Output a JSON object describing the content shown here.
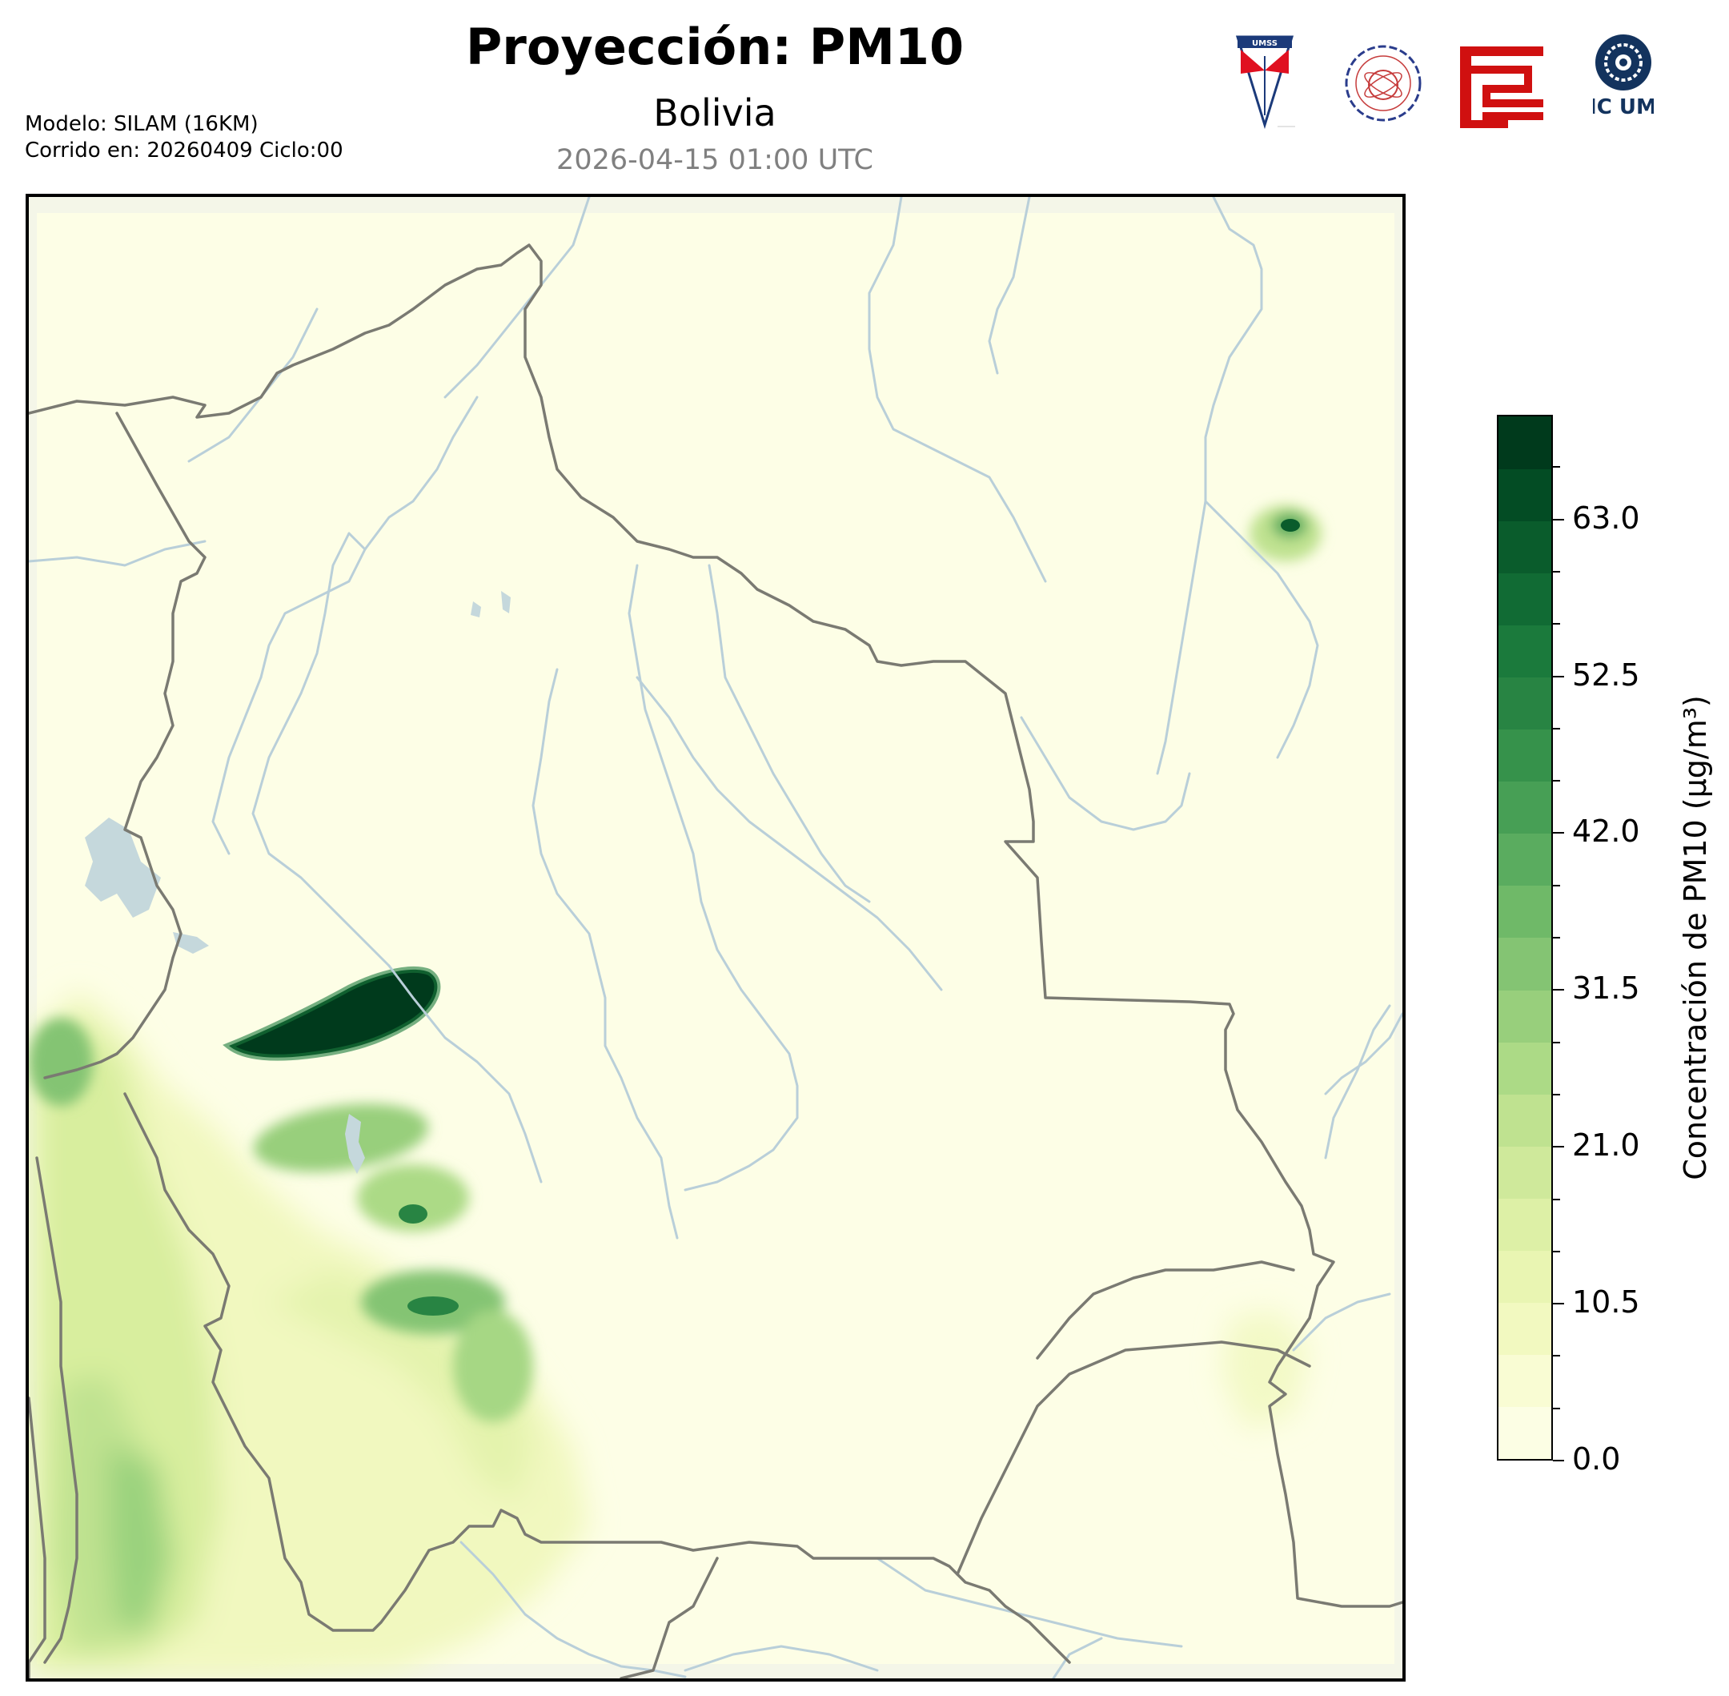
{
  "header": {
    "title": "Proyección: PM10",
    "subtitle": "Bolivia",
    "timestamp": "2026-04-15 01:00 UTC",
    "model": "Modelo: SILAM (16KM)",
    "run": "Corrido en: 20260409 Ciclo:00"
  },
  "logos": [
    {
      "name": "umss-shield-logo",
      "text": "UMSS"
    },
    {
      "name": "departamento-fisica-seal",
      "text": "DEPARTAMENTO DE FISICA"
    },
    {
      "name": "red-emblem-logo",
      "text": ""
    },
    {
      "name": "cmc-umss-logo",
      "text": "CMC UMSS"
    }
  ],
  "colorbar": {
    "label": "Concentración de PM10 (µg/m³)",
    "min": 0.0,
    "max": 70.0,
    "tick_labels": [
      "0.0",
      "10.5",
      "21.0",
      "31.5",
      "42.0",
      "52.5",
      "63.0"
    ],
    "tick_values": [
      0.0,
      10.5,
      21.0,
      31.5,
      42.0,
      52.5,
      63.0
    ],
    "levels": 20,
    "colors": [
      "#fcfee4",
      "#f9fcd3",
      "#f2f9c0",
      "#e9f5b2",
      "#ddf0a6",
      "#cfe99b",
      "#bfe290",
      "#acda86",
      "#98cf7c",
      "#84c473",
      "#6fb968",
      "#5aac5f",
      "#479f55",
      "#36924b",
      "#288443",
      "#1b7a3c",
      "#116b34",
      "#0a5c2c",
      "#034c24",
      "#003a1c"
    ]
  },
  "map": {
    "region": "Bolivia",
    "colors": {
      "background": "#fdfee6",
      "border": "#7a7a72",
      "river": "#b9cfd9",
      "lake": "#c5d8dc"
    }
  }
}
